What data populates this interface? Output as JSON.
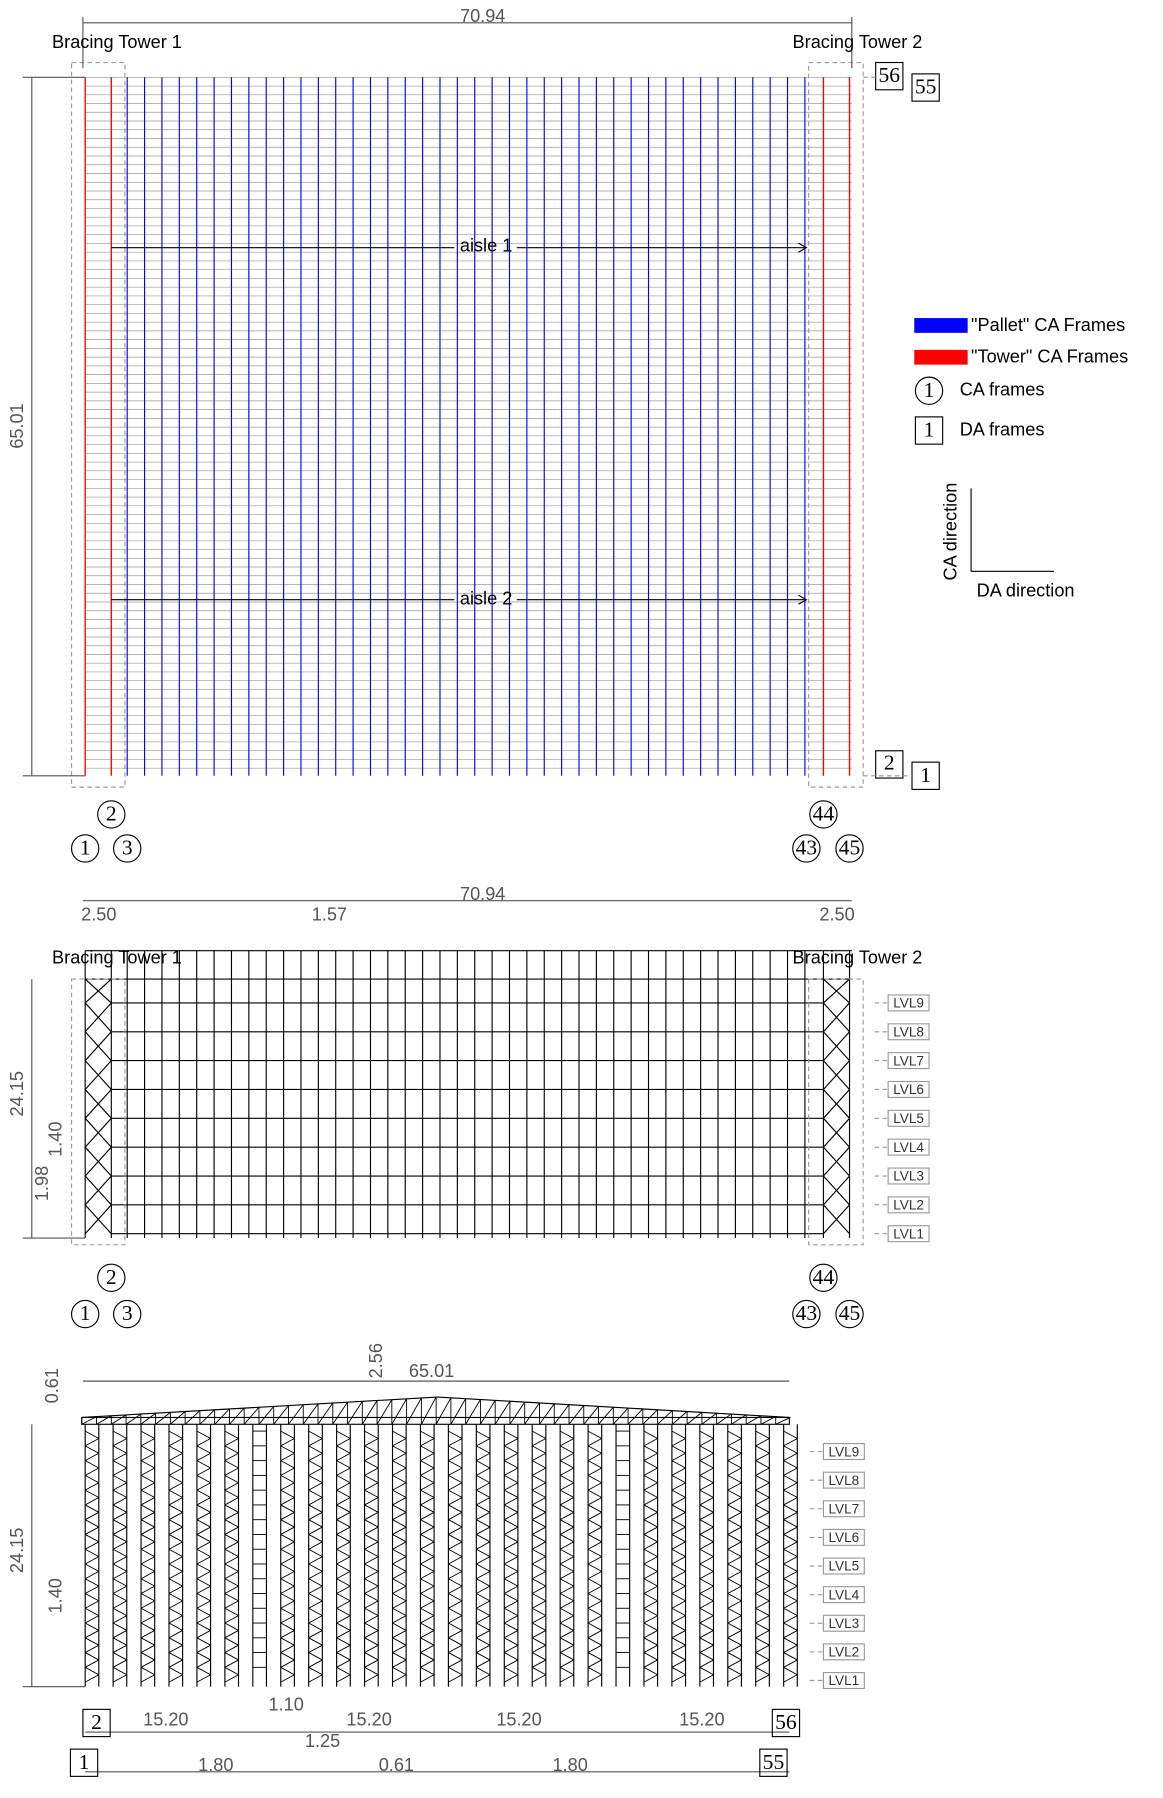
{
  "plan": {
    "width_dim": "70.94",
    "height_dim": "65.01",
    "tower_left": "Bracing Tower 1",
    "tower_right": "Bracing Tower 2",
    "aisles": [
      "aisle 1",
      "aisle 2"
    ],
    "ca_frames": {
      "f2": "2",
      "f1": "1",
      "f3": "3",
      "f44": "44",
      "f43": "43",
      "f45": "45"
    },
    "da_frames": {
      "f56": "56",
      "f55": "55",
      "f2": "2",
      "f1": "1"
    }
  },
  "legend": {
    "pallet": "\"Pallet\" CA Frames",
    "tower": "\"Tower\" CA Frames",
    "ca_symbol": "1",
    "ca_label": "CA frames",
    "da_symbol": "1",
    "da_label": "DA frames",
    "ca_direction": "CA direction",
    "da_direction": "DA direction"
  },
  "elevation_da": {
    "width_dim": "70.94",
    "tower_left_dim": "2.50",
    "bay_dim": "1.57",
    "tower_right_dim": "2.50",
    "tower_left": "Bracing Tower 1",
    "tower_right": "Bracing Tower 2",
    "height_dim": "24.15",
    "level_dim": "1.40",
    "first_level_dim": "1.98",
    "levels": [
      "LVL9",
      "LVL8",
      "LVL7",
      "LVL6",
      "LVL5",
      "LVL4",
      "LVL3",
      "LVL2",
      "LVL1"
    ],
    "ca_frames": {
      "f2": "2",
      "f1": "1",
      "f3": "3",
      "f44": "44",
      "f43": "43",
      "f45": "45"
    }
  },
  "elevation_ca": {
    "roof_dim": "0.61",
    "rise_dim": "2.56",
    "width_dim": "65.01",
    "height_dim": "24.15",
    "level_dim": "1.40",
    "levels": [
      "LVL9",
      "LVL8",
      "LVL7",
      "LVL6",
      "LVL5",
      "LVL4",
      "LVL3",
      "LVL2",
      "LVL1"
    ],
    "spans": [
      "15.20",
      "15.20",
      "15.20",
      "15.20"
    ],
    "frame_dim": "1.10",
    "aisle_dim": "1.25",
    "gap_dims": [
      "1.80",
      "0.61",
      "1.80"
    ],
    "da_frames": {
      "f2": "2",
      "f1": "1",
      "f56": "56",
      "f55": "55"
    }
  }
}
